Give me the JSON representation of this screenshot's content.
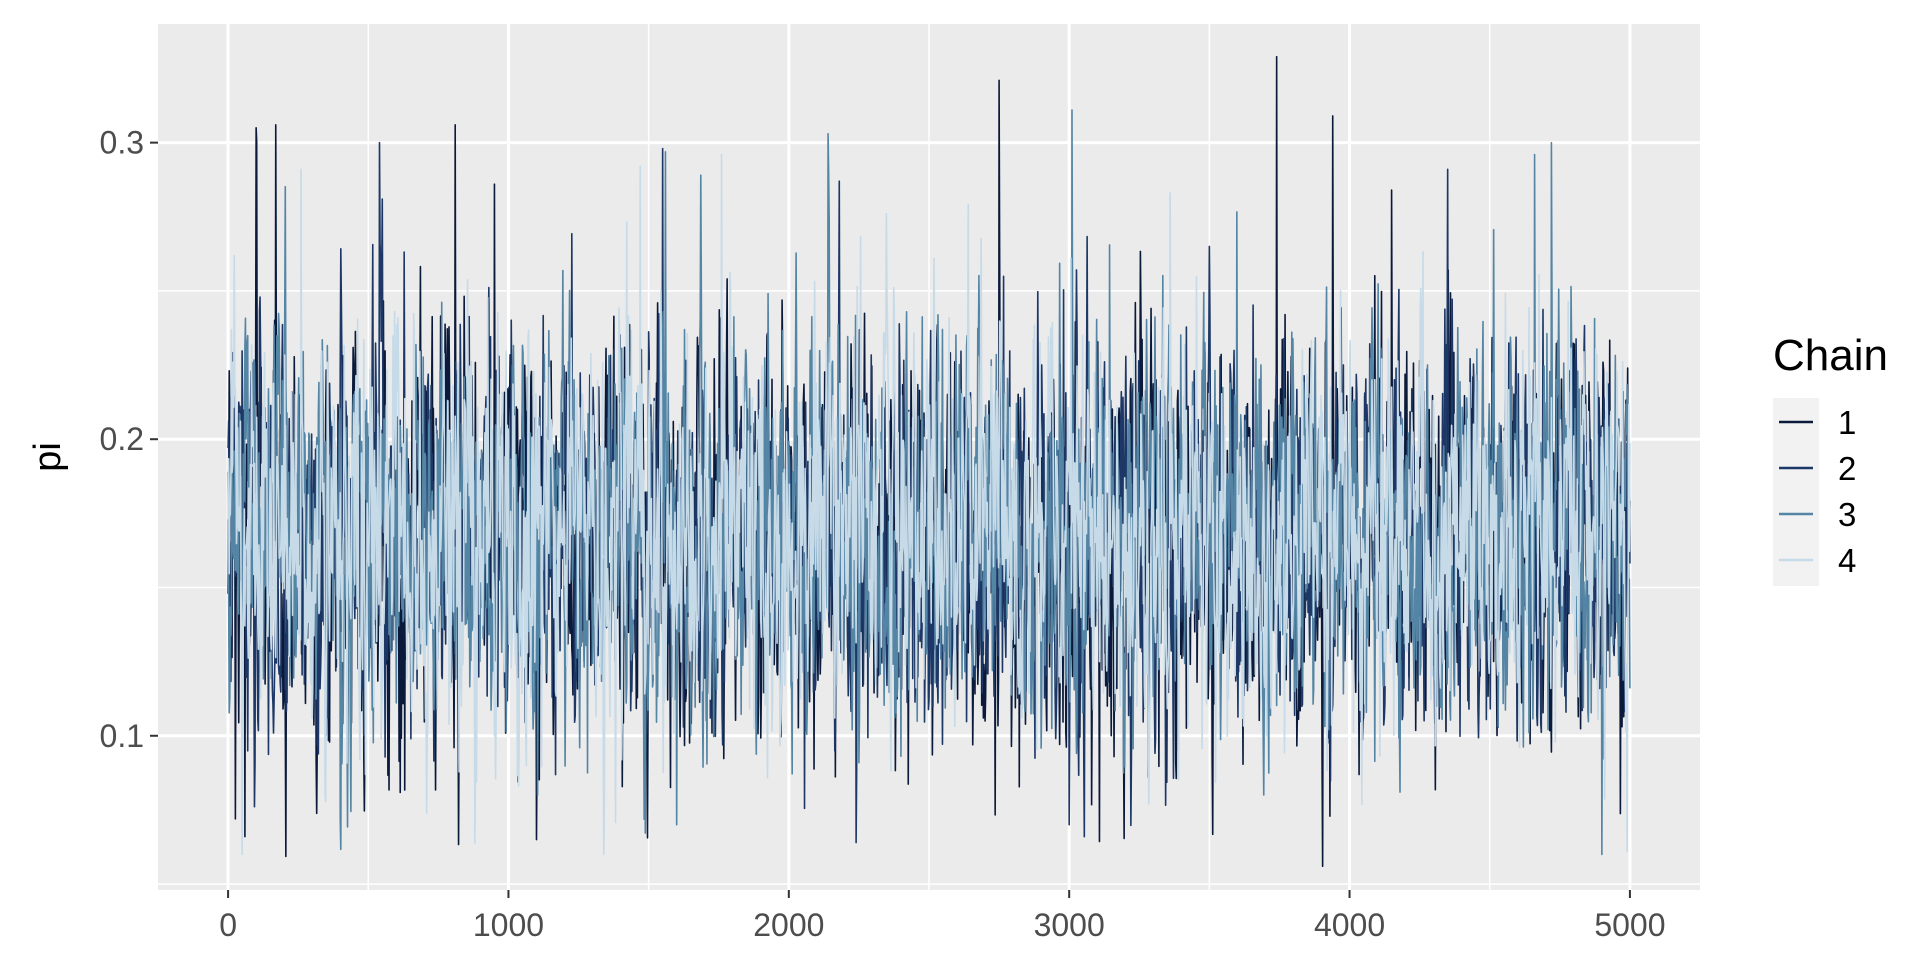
{
  "chart_data": {
    "type": "line",
    "title": "",
    "xlabel": "",
    "ylabel": "pi",
    "xlim": [
      -250,
      5250
    ],
    "ylim": [
      0.048,
      0.34
    ],
    "x_ticks": [
      0,
      1000,
      2000,
      3000,
      4000,
      5000
    ],
    "x_tick_labels": [
      "0",
      "1000",
      "2000",
      "3000",
      "4000",
      "5000"
    ],
    "y_ticks": [
      0.1,
      0.2,
      0.3
    ],
    "y_tick_labels": [
      "0.1",
      "0.2",
      "0.3"
    ],
    "grid": true,
    "legend": {
      "title": "Chain",
      "position": "right"
    },
    "colors": {
      "panel": "#ebebeb",
      "grid": "#ffffff",
      "text": "#4d4d4d"
    },
    "trace": {
      "iterations": 5000,
      "center": 0.167,
      "typical_min": 0.09,
      "typical_max": 0.28
    },
    "series": [
      {
        "name": "1",
        "color": "#0b1a3a",
        "spikes": [
          [
            100,
            0.305
          ],
          [
            170,
            0.306
          ],
          [
            810,
            0.306
          ],
          [
            950,
            0.286
          ],
          [
            2750,
            0.321
          ],
          [
            3740,
            0.329
          ],
          [
            3940,
            0.309
          ],
          [
            4150,
            0.284
          ],
          [
            1100,
            0.065
          ],
          [
            60,
            0.066
          ],
          [
            25,
            0.072
          ]
        ]
      },
      {
        "name": "2",
        "color": "#1d3866",
        "spikes": [
          [
            540,
            0.3
          ],
          [
            1550,
            0.298
          ],
          [
            2180,
            0.287
          ],
          [
            3500,
            0.265
          ],
          [
            4350,
            0.291
          ],
          [
            2240,
            0.064
          ],
          [
            3000,
            0.07
          ]
        ]
      },
      {
        "name": "3",
        "color": "#5585a4",
        "spikes": [
          [
            3010,
            0.311
          ],
          [
            2140,
            0.303
          ],
          [
            4720,
            0.3
          ],
          [
            4660,
            0.296
          ],
          [
            4900,
            0.06
          ],
          [
            1600,
            0.07
          ],
          [
            400,
            0.072
          ]
        ]
      },
      {
        "name": "4",
        "color": "#c6dae8",
        "spikes": [
          [
            1760,
            0.296
          ],
          [
            260,
            0.291
          ],
          [
            1470,
            0.292
          ],
          [
            50,
            0.06
          ],
          [
            4990,
            0.061
          ],
          [
            3360,
            0.283
          ]
        ]
      }
    ]
  }
}
